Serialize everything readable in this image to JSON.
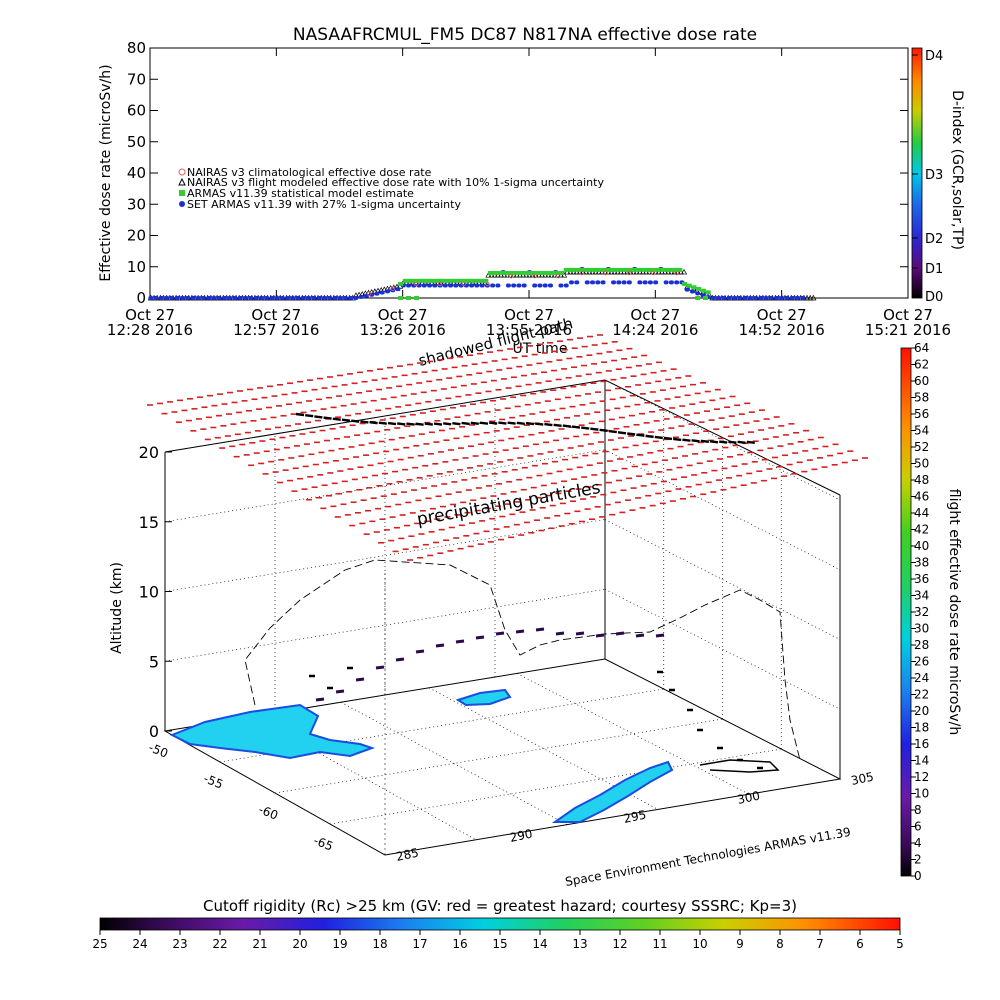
{
  "chart_data": [
    {
      "type": "scatter",
      "title": "NASAAFRCMUL_FM5 DC87 N817NA effective dose rate",
      "ylabel": "Effective dose rate (microSv/h)",
      "xlabel": "UT time",
      "ylim": [
        0,
        80
      ],
      "yticks": [
        "0",
        "10",
        "20",
        "30",
        "40",
        "50",
        "60",
        "70",
        "80"
      ],
      "xticks": [
        {
          "date": "Oct 27",
          "time": "12:28 2016"
        },
        {
          "date": "Oct 27",
          "time": "12:57 2016"
        },
        {
          "date": "Oct 27",
          "time": "13:26 2016"
        },
        {
          "date": "Oct 27",
          "time": "13:55 2016"
        },
        {
          "date": "Oct 27",
          "time": "14:24 2016"
        },
        {
          "date": "Oct 27",
          "time": "14:52 2016"
        },
        {
          "date": "Oct 27",
          "time": "15:21 2016"
        }
      ],
      "annotation": "shadowed flight path",
      "legend_position": "middle-left",
      "series": [
        {
          "name": "NAIRAS v3 climatological effective dose rate",
          "color": "#e06060",
          "marker": "circle-open"
        },
        {
          "name": "NAIRAS v3 flight modeled effective dose rate with 10% 1-sigma uncertainty",
          "color": "#000000",
          "marker": "triangle-open"
        },
        {
          "name": "ARMAS v11.39 statistical model estimate",
          "color": "#33cc33",
          "marker": "square"
        },
        {
          "name": "SET ARMAS v11.39 with 27% 1-sigma uncertainty",
          "color": "#1a2fd6",
          "marker": "circle"
        }
      ],
      "segments": [
        {
          "x": [
            12.47,
            13.25
          ],
          "y": [
            0,
            0
          ]
        },
        {
          "x": [
            13.25,
            13.42
          ],
          "y": [
            0,
            3
          ]
        },
        {
          "x": [
            13.42,
            13.75
          ],
          "y": [
            4,
            4
          ]
        },
        {
          "x": [
            13.75,
            14.05
          ],
          "y": [
            6.5,
            6.5
          ]
        },
        {
          "x": [
            14.05,
            14.5
          ],
          "y": [
            7.5,
            7.5
          ]
        },
        {
          "x": [
            14.5,
            14.6
          ],
          "y": [
            3,
            0
          ]
        },
        {
          "x": [
            14.6,
            14.95
          ],
          "y": [
            0,
            0
          ]
        }
      ],
      "right_axis": {
        "label": "D-index (GCR,solar,TP)",
        "ticks": [
          "D0",
          "D1",
          "D2",
          "D3",
          "D4"
        ]
      }
    },
    {
      "type": "scatter",
      "zlabel": "Altitude (km)",
      "zticks": [
        "0",
        "5",
        "10",
        "15",
        "20"
      ],
      "lat_ticks": [
        "-50",
        "-55",
        "-60",
        "-65"
      ],
      "lon_ticks": [
        "285",
        "290",
        "295",
        "300",
        "305"
      ],
      "annotation": "precipitating particles",
      "credit": "Space Environment Technologies ARMAS v11.39",
      "colorbar": {
        "label": "flight effective dose rate microSv/h",
        "ticks": [
          "0",
          "2",
          "4",
          "6",
          "8",
          "10",
          "12",
          "14",
          "16",
          "18",
          "20",
          "22",
          "24",
          "26",
          "28",
          "30",
          "32",
          "34",
          "36",
          "38",
          "40",
          "42",
          "44",
          "46",
          "48",
          "50",
          "52",
          "54",
          "56",
          "58",
          "60",
          "62",
          "64"
        ]
      },
      "cutoff_colorbar": {
        "label": "Cutoff rigidity (Rc) >25 km (GV: red = greatest hazard; courtesy SSSRC; Kp=3)",
        "ticks": [
          "25",
          "24",
          "23",
          "22",
          "21",
          "20",
          "19",
          "18",
          "17",
          "16",
          "15",
          "14",
          "13",
          "12",
          "11",
          "10",
          "9",
          "8",
          "7",
          "6",
          "5"
        ]
      }
    }
  ]
}
